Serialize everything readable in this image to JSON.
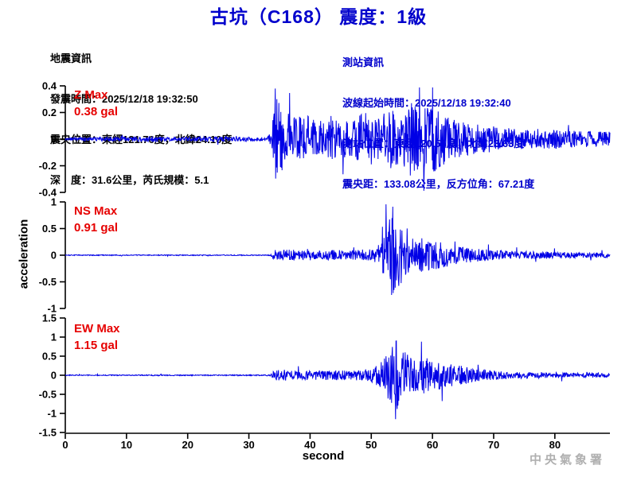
{
  "title": "古坑（C168） 震度：1級",
  "earthquake_info": {
    "heading": "地震資訊",
    "lines": [
      "發震時間：2025/12/18 19:32:50",
      "震央位置：東經121.76度，北緯24.10度",
      "深　度：31.6公里，芮氏規模：5.1"
    ]
  },
  "station_info": {
    "heading": "測站資訊",
    "lines": [
      "波線起始時間：2025/12/18 19:32:40",
      "測站位置：東經120.55度，北緯23.63度",
      "震央距：133.08公里，反方位角：67.21度"
    ]
  },
  "watermark": "中央氣象署",
  "colors": {
    "title_blue": "#0000cc",
    "trace_blue": "#0000e6",
    "max_label_red": "#e60000",
    "axis_black": "#000000",
    "watermark_gray": "#b0b0b0"
  },
  "chart_data": {
    "type": "line",
    "title": "古坑（C168） 震度：1級",
    "xlabel": "second",
    "ylabel": "acceleration",
    "unit": "gal",
    "x_range": [
      0,
      89
    ],
    "x_ticks": [
      0,
      10,
      20,
      30,
      40,
      50,
      60,
      70,
      80
    ],
    "grid": false,
    "legend_position": "none",
    "series": [
      {
        "name": "Z",
        "max_label": "Z Max",
        "max_value_label": "0.38 gal",
        "max_gal": 0.38,
        "peak_time_s": 34.3,
        "peak_sign": 1,
        "event_onset_s": 33.5,
        "ylim": [
          -0.4,
          0.4
        ],
        "y_ticks": [
          0.4,
          0.2,
          0,
          -0.2,
          -0.4
        ],
        "envelope_t_amp": [
          [
            0,
            0.013
          ],
          [
            8,
            0.016
          ],
          [
            14,
            0.022
          ],
          [
            18,
            0.014
          ],
          [
            24,
            0.02
          ],
          [
            28,
            0.016
          ],
          [
            33,
            0.014
          ],
          [
            33.8,
            0.08
          ],
          [
            34.3,
            0.38
          ],
          [
            35,
            0.26
          ],
          [
            36,
            0.2
          ],
          [
            37.5,
            0.17
          ],
          [
            39,
            0.19
          ],
          [
            41,
            0.14
          ],
          [
            43,
            0.16
          ],
          [
            45,
            0.13
          ],
          [
            47,
            0.15
          ],
          [
            49,
            0.2
          ],
          [
            51,
            0.16
          ],
          [
            53,
            0.22
          ],
          [
            55,
            0.19
          ],
          [
            56.5,
            0.28
          ],
          [
            58,
            0.22
          ],
          [
            59.5,
            0.3
          ],
          [
            61,
            0.22
          ],
          [
            62.5,
            0.17
          ],
          [
            64,
            0.14
          ],
          [
            66,
            0.12
          ],
          [
            69,
            0.1
          ],
          [
            72,
            0.09
          ],
          [
            76,
            0.08
          ],
          [
            80,
            0.07
          ],
          [
            84,
            0.06
          ],
          [
            89,
            0.055
          ]
        ]
      },
      {
        "name": "NS",
        "max_label": "NS Max",
        "max_value_label": "0.91 gal",
        "max_gal": 0.91,
        "peak_time_s": 53.5,
        "peak_sign": 1,
        "event_onset_s": 33.8,
        "ylim": [
          -1,
          1
        ],
        "y_ticks": [
          1,
          0.5,
          0,
          -0.5,
          -1
        ],
        "envelope_t_amp": [
          [
            0,
            0.008
          ],
          [
            15,
            0.009
          ],
          [
            30,
            0.008
          ],
          [
            33.5,
            0.01
          ],
          [
            34.2,
            0.1
          ],
          [
            36,
            0.12
          ],
          [
            38,
            0.09
          ],
          [
            40,
            0.1
          ],
          [
            42,
            0.08
          ],
          [
            44,
            0.1
          ],
          [
            46,
            0.09
          ],
          [
            48,
            0.1
          ],
          [
            50,
            0.12
          ],
          [
            51.5,
            0.25
          ],
          [
            52.5,
            0.5
          ],
          [
            53.5,
            0.91
          ],
          [
            54.3,
            0.72
          ],
          [
            55,
            0.5
          ],
          [
            56,
            0.38
          ],
          [
            57.5,
            0.3
          ],
          [
            58.5,
            0.34
          ],
          [
            60,
            0.25
          ],
          [
            61.5,
            0.28
          ],
          [
            63,
            0.18
          ],
          [
            65,
            0.15
          ],
          [
            67,
            0.12
          ],
          [
            70,
            0.1
          ],
          [
            73,
            0.08
          ],
          [
            77,
            0.07
          ],
          [
            81,
            0.06
          ],
          [
            85,
            0.05
          ],
          [
            89,
            0.045
          ]
        ]
      },
      {
        "name": "EW",
        "max_label": "EW Max",
        "max_value_label": "1.15 gal",
        "max_gal": 1.15,
        "peak_time_s": 54.0,
        "peak_sign": -1,
        "event_onset_s": 33.8,
        "ylim": [
          -1.5,
          1.5
        ],
        "y_ticks": [
          1.5,
          1,
          0.5,
          0,
          -0.5,
          -1,
          -1.5
        ],
        "envelope_t_amp": [
          [
            0,
            0.012
          ],
          [
            15,
            0.013
          ],
          [
            30,
            0.013
          ],
          [
            33.5,
            0.015
          ],
          [
            34.2,
            0.13
          ],
          [
            36,
            0.15
          ],
          [
            38,
            0.12
          ],
          [
            40,
            0.13
          ],
          [
            42,
            0.11
          ],
          [
            44,
            0.13
          ],
          [
            46,
            0.12
          ],
          [
            48,
            0.14
          ],
          [
            50,
            0.17
          ],
          [
            51.5,
            0.35
          ],
          [
            52.5,
            0.55
          ],
          [
            54,
            1.1
          ],
          [
            54.8,
            0.7
          ],
          [
            56,
            0.55
          ],
          [
            57,
            0.45
          ],
          [
            58.5,
            0.5
          ],
          [
            60,
            0.42
          ],
          [
            61.5,
            0.35
          ],
          [
            63,
            0.3
          ],
          [
            65,
            0.24
          ],
          [
            67,
            0.18
          ],
          [
            69,
            0.13
          ],
          [
            71,
            0.11
          ],
          [
            74,
            0.09
          ],
          [
            78,
            0.08
          ],
          [
            82,
            0.07
          ],
          [
            86,
            0.065
          ],
          [
            89,
            0.06
          ]
        ]
      }
    ]
  }
}
